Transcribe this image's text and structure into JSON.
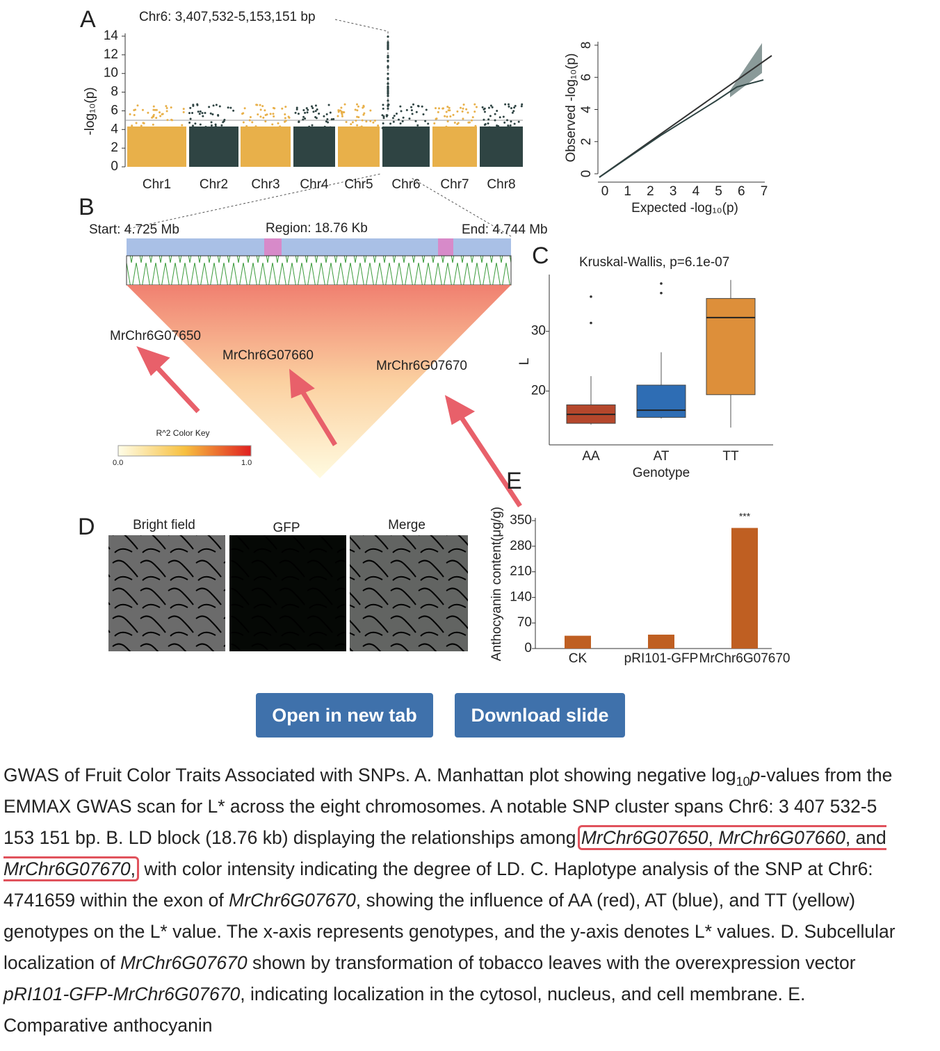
{
  "figure": {
    "panel_a": {
      "label": "A",
      "region": "Chr6: 3,407,532-5,153,151 bp",
      "y_label": "-log₁₀(p)",
      "ylim": [
        0,
        14
      ],
      "yticks": [
        0,
        2,
        4,
        6,
        8,
        10,
        12,
        14
      ],
      "categories": [
        "Chr1",
        "Chr2",
        "Chr3",
        "Chr4",
        "Chr5",
        "Chr6",
        "Chr7",
        "Chr8"
      ],
      "colors": [
        "#e8b04a",
        "#2f4443"
      ]
    },
    "qq": {
      "x_label": "Expected -log₁₀(p)",
      "y_label": "Observed -log₁₀(p)",
      "xlim": [
        0,
        7
      ],
      "xticks": [
        0,
        1,
        2,
        3,
        4,
        5,
        6,
        7
      ],
      "ylim": [
        0,
        8
      ],
      "yticks": [
        0,
        2,
        4,
        6,
        8
      ]
    },
    "panel_b": {
      "label": "B",
      "start": "Start: 4.725 Mb",
      "region": "Region: 18.76 Kb",
      "end": "End: 4.744 Mb",
      "genes": [
        "MrChr6G07650",
        "MrChr6G07660",
        "MrChr6G07670"
      ],
      "color_key_title": "R^2 Color Key",
      "color_key_ticks": [
        "0.0",
        "1.0"
      ]
    },
    "panel_c": {
      "label": "C",
      "title": "Kruskal-Wallis, p=6.1e-07",
      "y_label": "L",
      "x_label": "Genotype",
      "categories": [
        "AA",
        "AT",
        "TT"
      ],
      "colors": [
        "#b5472c",
        "#2e6db4",
        "#dd8f3a"
      ],
      "ylim": [
        11,
        39.5
      ],
      "yticks": [
        20,
        30
      ],
      "boxes": [
        {
          "low": 14.4,
          "q1": 14.6,
          "median": 16.1,
          "q3": 17.7,
          "high": 22.5,
          "outliers": [
            31.4,
            35.8
          ]
        },
        {
          "low": 15.4,
          "q1": 15.6,
          "median": 16.8,
          "q3": 21,
          "high": 26.5,
          "outliers": [
            36.4,
            38
          ]
        },
        {
          "low": 13.9,
          "q1": 19.4,
          "median": 32.3,
          "q3": 35.5,
          "high": 38.6,
          "outliers": []
        }
      ]
    },
    "panel_d": {
      "label": "D",
      "columns": [
        "Bright field",
        "GFP",
        "Merge"
      ]
    },
    "panel_e": {
      "label": "E",
      "y_label": "Anthocyanin content(μg/g)",
      "ylim": [
        0,
        350
      ],
      "yticks": [
        0,
        70,
        140,
        210,
        280,
        350
      ],
      "categories": [
        "CK",
        "pRI101-GFP",
        "MrChr6G07670"
      ],
      "values": [
        35,
        38,
        330
      ],
      "color": "#bf5f22",
      "annotation": "***"
    }
  },
  "buttons": [
    "Open in new tab",
    "Download slide"
  ],
  "caption": {
    "before": [
      "GWAS of Fruit Color Traits Associated with SNPs. A. Manhattan plot showing negative log",
      {
        "text": "10",
        "style": "sub"
      },
      {
        "text": "p",
        "style": "italic"
      },
      "-values from the EMMAX GWAS scan for L* across the eight chromosomes. A notable SNP cluster spans Chr6: 3 407 532-5 153 151 bp. B. LD block (18.76 kb) displaying the relationships among "
    ],
    "highlight": [
      {
        "text": "MrChr6G07650",
        "style": "italic"
      },
      ", ",
      {
        "text": "MrChr6G07660",
        "style": "italic"
      },
      ", and ",
      {
        "text": "MrChr6G07670",
        "style": "italic"
      },
      ","
    ],
    "after": [
      " with color intensity indicating the degree of LD. C. Haplotype analysis of the SNP at Chr6: 4741659 within the exon of ",
      {
        "text": "MrChr6G07670",
        "style": "italic"
      },
      ", showing the influence of AA (red), AT (blue), and TT (yellow) genotypes on the L* value. The x-axis represents genotypes, and the y-axis denotes L* values. D. Subcellular localization of ",
      {
        "text": "MrChr6G07670",
        "style": "italic"
      },
      " shown by transformation of tobacco leaves with the overexpression vector ",
      {
        "text": "pRI101-GFP-MrChr6G07670",
        "style": "italic"
      },
      ", indicating localization in the cytosol, nucleus, and cell membrane. E. Comparative anthocyanin"
    ]
  }
}
